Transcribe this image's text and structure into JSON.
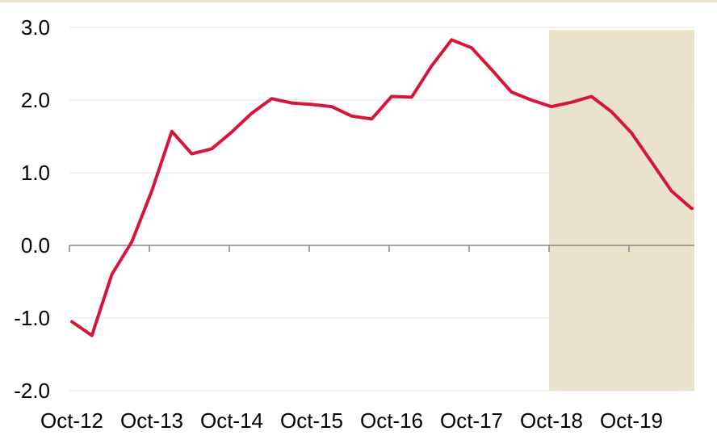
{
  "chart_data": {
    "type": "line",
    "title": "",
    "xlabel": "",
    "ylabel": "",
    "ylim": [
      -2.0,
      3.0
    ],
    "yticks": [
      -2.0,
      -1.0,
      0.0,
      1.0,
      2.0,
      3.0
    ],
    "ytick_labels": [
      "-2.0",
      "-1.0",
      "0.0",
      "1.0",
      "2.0",
      "3.0"
    ],
    "xtick_labels": [
      "Oct-12",
      "Oct-13",
      "Oct-14",
      "Oct-15",
      "Oct-16",
      "Oct-17",
      "Oct-18",
      "Oct-19"
    ],
    "grid": true,
    "legend": "none",
    "forecast_shade": {
      "from_quarter": 24,
      "to_quarter": 32.2,
      "color": "#ebe2cb"
    },
    "series": [
      {
        "color": "#d9143a",
        "x": [
          "Oct-12",
          "Jan-13",
          "Apr-13",
          "Jul-13",
          "Oct-13",
          "Jan-14",
          "Apr-14",
          "Jul-14",
          "Oct-14",
          "Jan-15",
          "Apr-15",
          "Jul-15",
          "Oct-15",
          "Jan-16",
          "Apr-16",
          "Jul-16",
          "Oct-16",
          "Jan-17",
          "Apr-17",
          "Jul-17",
          "Oct-17",
          "Jan-18",
          "Apr-18",
          "Jul-18",
          "Oct-18",
          "Jan-19",
          "Apr-19",
          "Jul-19",
          "Oct-19",
          "Jan-20",
          "Apr-20",
          "Jul-20",
          "Oct-20"
        ],
        "values": [
          -1.05,
          -1.24,
          -0.4,
          0.05,
          0.75,
          1.57,
          1.26,
          1.33,
          1.56,
          1.82,
          2.02,
          1.96,
          1.94,
          1.91,
          1.78,
          1.74,
          2.05,
          2.04,
          2.47,
          2.83,
          2.72,
          2.42,
          2.11,
          2.0,
          1.91,
          1.97,
          2.05,
          1.84,
          1.55,
          1.15,
          0.75,
          0.51,
          0.51
        ]
      }
    ]
  }
}
